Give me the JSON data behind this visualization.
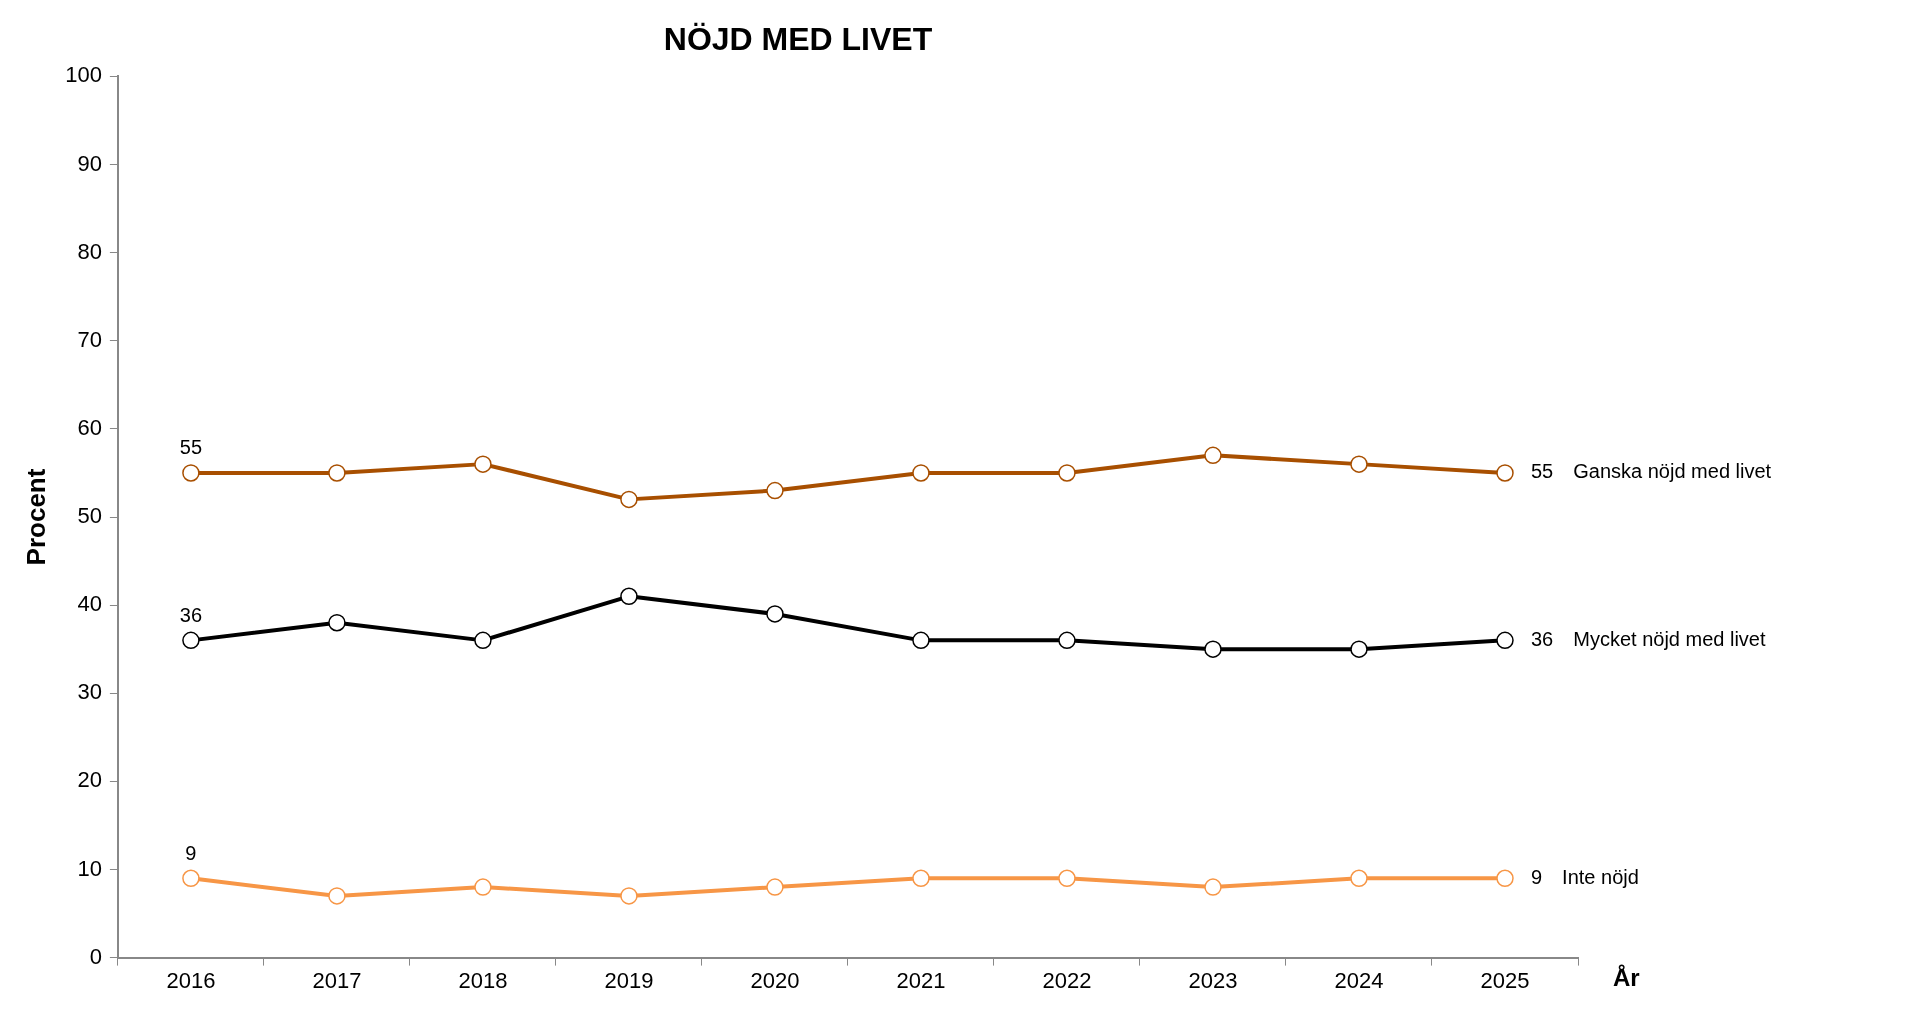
{
  "chart_data": {
    "type": "line",
    "title": "NÖJD MED LIVET",
    "xlabel": "År",
    "ylabel": "Procent",
    "categories": [
      "2016",
      "2017",
      "2018",
      "2019",
      "2020",
      "2021",
      "2022",
      "2023",
      "2024",
      "2025"
    ],
    "ylim": [
      0,
      100
    ],
    "yticks": [
      0,
      10,
      20,
      30,
      40,
      50,
      60,
      70,
      80,
      90,
      100
    ],
    "grid": false,
    "legend": false,
    "marker": "circle",
    "line_style": "solid",
    "series": [
      {
        "name": "Ganska nöjd med livet",
        "color": "#a84f00",
        "values": [
          55,
          55,
          56,
          52,
          53,
          55,
          55,
          57,
          56,
          55
        ],
        "value_labels": [
          "55",
          null,
          null,
          null,
          null,
          null,
          null,
          null,
          null,
          "55"
        ]
      },
      {
        "name": "Mycket nöjd med livet",
        "color": "#000000",
        "values": [
          36,
          38,
          36,
          41,
          39,
          36,
          36,
          35,
          35,
          36
        ],
        "value_labels": [
          "36",
          null,
          null,
          null,
          null,
          null,
          null,
          null,
          null,
          "36"
        ]
      },
      {
        "name": "Inte nöjd",
        "color": "#f79646",
        "values": [
          9,
          7,
          8,
          7,
          8,
          9,
          9,
          8,
          9,
          9
        ],
        "value_labels": [
          "9",
          null,
          null,
          null,
          null,
          null,
          null,
          null,
          null,
          "9"
        ]
      }
    ]
  }
}
